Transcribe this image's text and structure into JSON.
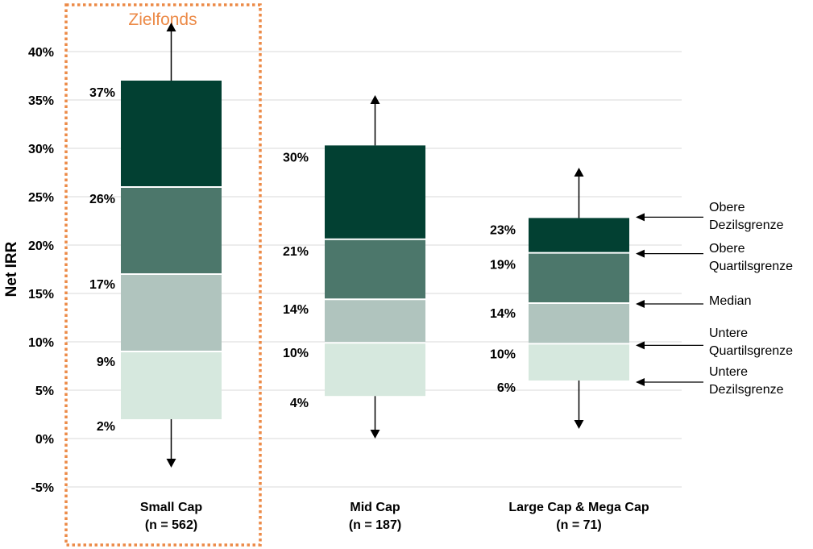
{
  "chart_data": {
    "type": "box",
    "ylabel": "Net IRR",
    "ylim": [
      -5,
      40
    ],
    "yticks": [
      -5,
      0,
      5,
      10,
      15,
      20,
      25,
      30,
      35,
      40
    ],
    "ytick_labels": [
      "-5%",
      "0%",
      "5%",
      "10%",
      "15%",
      "20%",
      "25%",
      "30%",
      "35%",
      "40%"
    ],
    "grid": true,
    "highlight_label": "Zielfonds",
    "series": [
      {
        "name": "Small Cap",
        "n_label": "(n = 562)",
        "lower_decile": 2,
        "lower_quartile": 9,
        "median": 17,
        "upper_quartile": 26,
        "upper_decile": 37,
        "labels": {
          "upper_decile": "37%",
          "upper_quartile": "26%",
          "median": "17%",
          "lower_quartile": "9%",
          "lower_decile": "2%"
        },
        "arrow_up_to": 43,
        "arrow_down_to": -3,
        "highlighted": true
      },
      {
        "name": "Mid Cap",
        "n_label": "(n = 187)",
        "lower_decile": 4.4,
        "lower_quartile": 9.9,
        "median": 14.4,
        "upper_quartile": 20.6,
        "upper_decile": 30.3,
        "labels": {
          "upper_decile": "30%",
          "upper_quartile": "21%",
          "median": "14%",
          "lower_quartile": "10%",
          "lower_decile": "4%"
        },
        "arrow_up_to": 35.5,
        "arrow_down_to": 0,
        "highlighted": false
      },
      {
        "name": "Large Cap & Mega Cap",
        "n_label": "(n = 71)",
        "lower_decile": 6,
        "lower_quartile": 9.8,
        "median": 14,
        "upper_quartile": 19.2,
        "upper_decile": 22.8,
        "labels": {
          "upper_decile": "23%",
          "upper_quartile": "19%",
          "median": "14%",
          "lower_quartile": "10%",
          "lower_decile": "6%"
        },
        "arrow_up_to": 28,
        "arrow_down_to": 1,
        "highlighted": false
      }
    ],
    "legend": [
      {
        "key": "upper_decile",
        "lines": [
          "Obere",
          "Dezilsgrenze"
        ]
      },
      {
        "key": "upper_quartile",
        "lines": [
          "Obere",
          "Quartilsgrenze"
        ]
      },
      {
        "key": "median",
        "lines": [
          "Median"
        ]
      },
      {
        "key": "lower_quartile",
        "lines": [
          "Untere",
          "Quartilsgrenze"
        ]
      },
      {
        "key": "lower_decile",
        "lines": [
          "Untere",
          "Dezilsgrenze"
        ]
      }
    ],
    "colors": {
      "upper": "#024032",
      "upper_mid": "#4c776b",
      "lower_mid": "#b0c4be",
      "lower": "#d6e8de",
      "highlight": "#ec8a47",
      "grid": "#d9d9d9"
    }
  }
}
